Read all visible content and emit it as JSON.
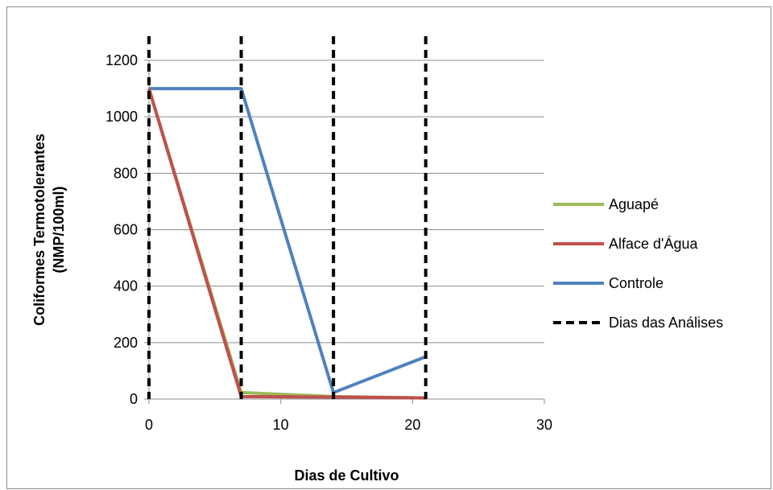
{
  "chart_data": {
    "type": "line",
    "title": "",
    "xlabel": "Dias de Cultivo",
    "ylabel": [
      "Coliformes Termotolerantes",
      "(NMP/100ml)"
    ],
    "xlim": [
      0,
      30
    ],
    "ylim": [
      0,
      1200
    ],
    "xticks": [
      0,
      10,
      20,
      30
    ],
    "yticks": [
      0,
      200,
      400,
      600,
      800,
      1000,
      1200
    ],
    "grid": "horizontal",
    "legend_position": "right",
    "series": [
      {
        "name": "Aguapé",
        "color": "#9bbb59",
        "style": "solid",
        "x": [
          0,
          7,
          14,
          21
        ],
        "y": [
          1100,
          23,
          9,
          4
        ]
      },
      {
        "name": "Alface d'Água",
        "color": "#c0504d",
        "style": "solid",
        "x": [
          0,
          7,
          14,
          21
        ],
        "y": [
          1100,
          9,
          7,
          4
        ]
      },
      {
        "name": "Controle",
        "color": "#4f81bd",
        "style": "solid",
        "x": [
          0,
          7,
          14,
          21
        ],
        "y": [
          1100,
          1100,
          23,
          150
        ]
      },
      {
        "name": "Dias das Análises",
        "color": "#000000",
        "style": "dashed",
        "x": [
          0,
          7,
          14,
          21
        ],
        "y": [
          0,
          0,
          0,
          0
        ],
        "vertical_markers": [
          0,
          7,
          14,
          21
        ]
      }
    ]
  }
}
